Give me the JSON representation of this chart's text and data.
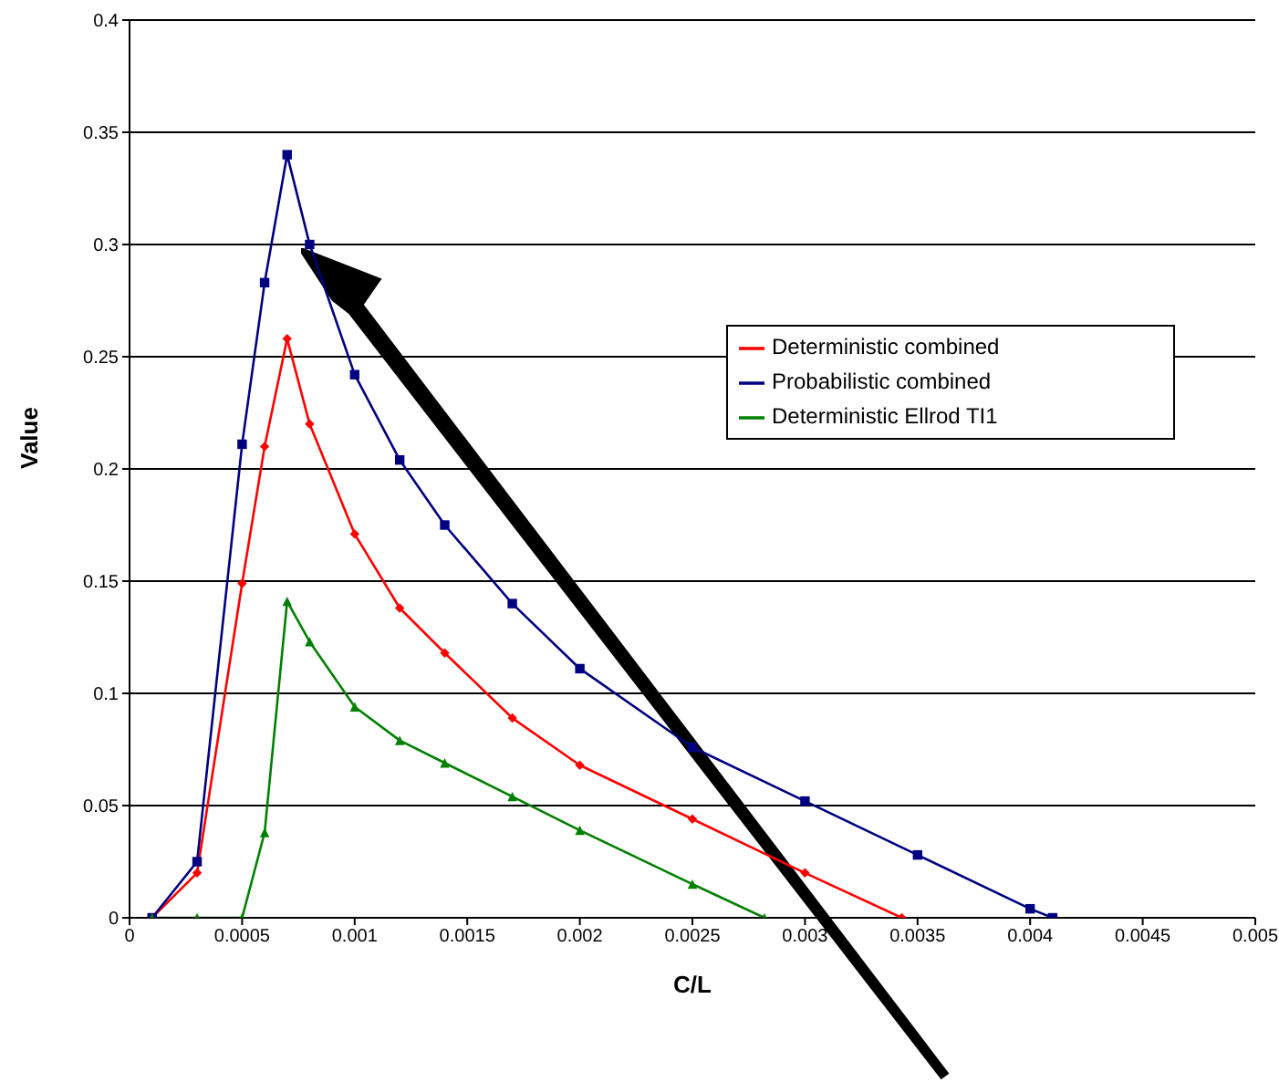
{
  "chart_data": {
    "type": "line",
    "xlabel": "C/L",
    "ylabel": "Value",
    "xlim": [
      0,
      0.005
    ],
    "xticks": [
      0,
      0.0005,
      0.001,
      0.0015,
      0.002,
      0.0025,
      0.003,
      0.0035,
      0.004,
      0.0045,
      0.005
    ],
    "ylim": [
      0,
      0.4
    ],
    "yticks": [
      0,
      0.05,
      0.1,
      0.15,
      0.2,
      0.25,
      0.3,
      0.35,
      0.4
    ],
    "grid": "y",
    "legend": "right",
    "line_style": "solid",
    "series": [
      {
        "name": "Deterministic combined",
        "color": "#ff0000",
        "marker": "diamond",
        "x": [
          0.0001,
          0.0003,
          0.0005,
          0.0006,
          0.0007,
          0.0008,
          0.001,
          0.0012,
          0.0014,
          0.0017,
          0.002,
          0.0025,
          0.003,
          0.00343
        ],
        "values": [
          0,
          0.02,
          0.149,
          0.21,
          0.258,
          0.22,
          0.171,
          0.138,
          0.118,
          0.089,
          0.068,
          0.044,
          0.02,
          0
        ]
      },
      {
        "name": "Probabilistic combined",
        "color": "#000080",
        "marker": "square",
        "x": [
          0.0001,
          0.0003,
          0.0005,
          0.0006,
          0.0007,
          0.0008,
          0.001,
          0.0012,
          0.0014,
          0.0017,
          0.002,
          0.0025,
          0.003,
          0.0035,
          0.004,
          0.0041
        ],
        "values": [
          0,
          0.025,
          0.211,
          0.283,
          0.34,
          0.3,
          0.242,
          0.204,
          0.175,
          0.14,
          0.111,
          0.076,
          0.052,
          0.028,
          0.004,
          0
        ]
      },
      {
        "name": "Deterministic Ellrod TI1",
        "color": "#008000",
        "marker": "triangle",
        "x": [
          0.0001,
          0.0003,
          0.0005,
          0.0006,
          0.0007,
          0.0008,
          0.001,
          0.0012,
          0.0014,
          0.0017,
          0.002,
          0.0025,
          0.00282
        ],
        "values": [
          0,
          0,
          0,
          0.038,
          0.141,
          0.123,
          0.094,
          0.079,
          0.069,
          0.054,
          0.039,
          0.015,
          0
        ]
      }
    ]
  }
}
